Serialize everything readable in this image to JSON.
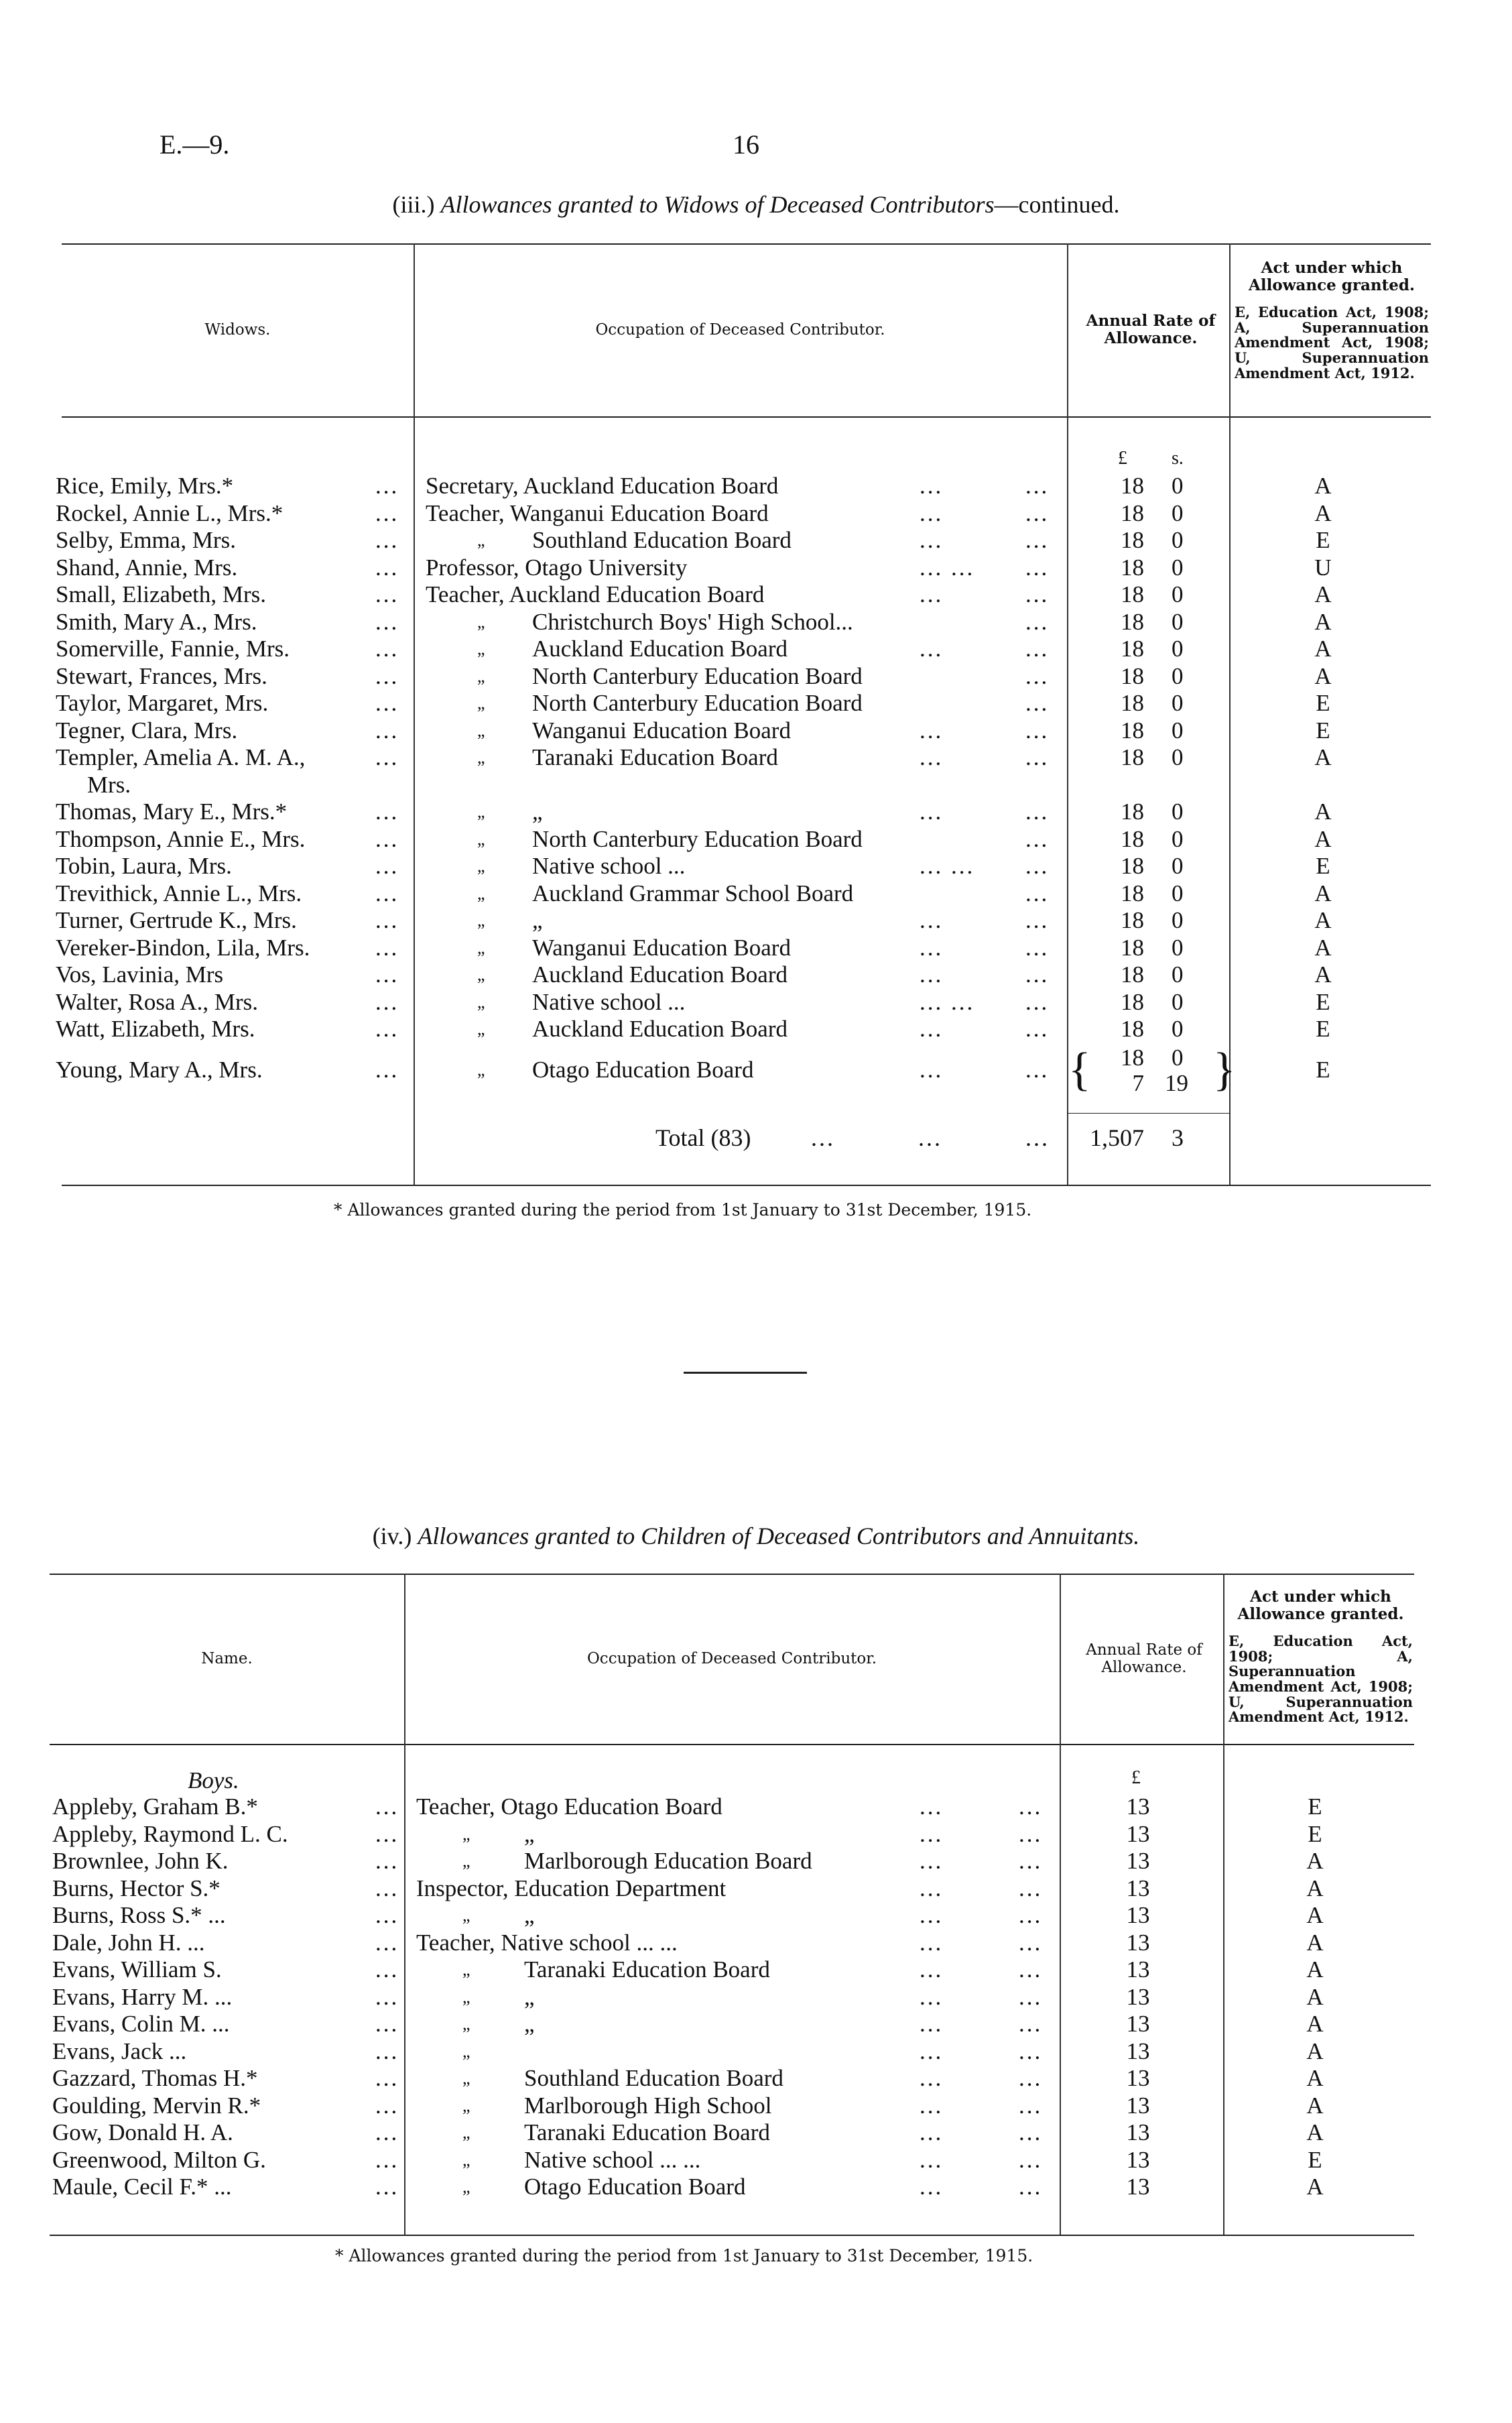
{
  "page": {
    "ref": "E.—9.",
    "number": "16"
  },
  "leader": "...",
  "ditto": "„",
  "widows": {
    "title_prefix": "(iii.)",
    "title_italic": "Allowances granted to Widows of Deceased Contributors",
    "title_suffix": "—continued.",
    "headers": {
      "name": "Widows.",
      "occupation": "Occupation of Deceased Contributor.",
      "rate": "Annual Rate of Allowance.",
      "act_title": "Act under which Allowance granted.",
      "act_note": "E, Education Act, 1908; A, Superannuation Amendment Act, 1908; U, Superannuation Amendment Act, 1912."
    },
    "units": {
      "pounds": "£",
      "shillings": "s."
    },
    "rows": [
      {
        "name": "Rice, Emily, Mrs.*",
        "ditto": false,
        "occ": "Secretary, Auckland Education Board",
        "mid": "...",
        "l": "18",
        "s": "0",
        "act": "A"
      },
      {
        "name": "Rockel, Annie L., Mrs.*",
        "ditto": false,
        "occ": "Teacher, Wanganui Education Board",
        "mid": "...",
        "l": "18",
        "s": "0",
        "act": "A"
      },
      {
        "name": "Selby, Emma, Mrs.",
        "ditto": true,
        "occ": "Southland Education Board",
        "mid": "...",
        "l": "18",
        "s": "0",
        "act": "E"
      },
      {
        "name": "Shand, Annie, Mrs.",
        "ditto": false,
        "occ": "Professor, Otago University",
        "mid": "...      ...",
        "l": "18",
        "s": "0",
        "act": "U"
      },
      {
        "name": "Small, Elizabeth, Mrs.",
        "ditto": false,
        "occ": "Teacher, Auckland Education Board",
        "mid": "...",
        "l": "18",
        "s": "0",
        "act": "A"
      },
      {
        "name": "Smith, Mary A., Mrs.",
        "ditto": true,
        "occ": "Christchurch Boys' High School...",
        "mid": "",
        "l": "18",
        "s": "0",
        "act": "A"
      },
      {
        "name": "Somerville, Fannie, Mrs.",
        "ditto": true,
        "occ": "Auckland Education Board",
        "mid": "...",
        "l": "18",
        "s": "0",
        "act": "A"
      },
      {
        "name": "Stewart, Frances, Mrs.",
        "ditto": true,
        "occ": "North Canterbury Education Board",
        "mid": "",
        "l": "18",
        "s": "0",
        "act": "A"
      },
      {
        "name": "Taylor, Margaret, Mrs.",
        "ditto": true,
        "occ": "North Canterbury Education Board",
        "mid": "",
        "l": "18",
        "s": "0",
        "act": "E"
      },
      {
        "name": "Tegner, Clara, Mrs.",
        "ditto": true,
        "occ": "Wanganui Education Board",
        "mid": "...",
        "l": "18",
        "s": "0",
        "act": "E"
      },
      {
        "name": "Templer, Amelia A. M. A.,",
        "name2": "Mrs.",
        "ditto": true,
        "occ": "Taranaki Education Board",
        "mid": "...",
        "l": "18",
        "s": "0",
        "act": "A"
      },
      {
        "name": "Thomas, Mary E., Mrs.*",
        "ditto": true,
        "occ": "„",
        "mid": "...",
        "l": "18",
        "s": "0",
        "act": "A"
      },
      {
        "name": "Thompson, Annie E., Mrs.",
        "ditto": true,
        "occ": "North Canterbury Education Board",
        "mid": "",
        "l": "18",
        "s": "0",
        "act": "A"
      },
      {
        "name": "Tobin, Laura, Mrs.",
        "ditto": true,
        "occ": "Native school ...",
        "mid": "...      ...",
        "l": "18",
        "s": "0",
        "act": "E"
      },
      {
        "name": "Trevithick, Annie L., Mrs.",
        "ditto": true,
        "occ": "Auckland Grammar School Board",
        "mid": "",
        "l": "18",
        "s": "0",
        "act": "A"
      },
      {
        "name": "Turner, Gertrude K., Mrs.",
        "ditto": true,
        "occ": "„",
        "mid": "...",
        "l": "18",
        "s": "0",
        "act": "A"
      },
      {
        "name": "Vereker-Bindon, Lila, Mrs.",
        "ditto": true,
        "occ": "Wanganui Education Board",
        "mid": "...",
        "l": "18",
        "s": "0",
        "act": "A"
      },
      {
        "name": "Vos, Lavinia, Mrs",
        "ditto": true,
        "occ": "Auckland Education Board",
        "mid": "...",
        "l": "18",
        "s": "0",
        "act": "A"
      },
      {
        "name": "Walter, Rosa A., Mrs.",
        "ditto": true,
        "occ": "Native school ...",
        "mid": "...      ...",
        "l": "18",
        "s": "0",
        "act": "E"
      },
      {
        "name": "Watt, Elizabeth, Mrs.",
        "ditto": true,
        "occ": "Auckland Education Board",
        "mid": "...",
        "l": "18",
        "s": "0",
        "act": "E"
      },
      {
        "name": "Young, Mary A., Mrs.",
        "ditto": true,
        "occ": "Otago Education Board",
        "mid": "...",
        "l": "18",
        "s": "0",
        "l2": "7",
        "s2": "19",
        "act": "E"
      }
    ],
    "total": {
      "label": "Total (83)",
      "pounds": "1,507",
      "shillings": "3"
    },
    "footnote": "* Allowances granted during the period from 1st January to 31st December, 1915."
  },
  "children": {
    "title_prefix": "(iv.)",
    "title_italic": "Allowances granted to Children of Deceased Contributors and Annuitants.",
    "headers": {
      "name": "Name.",
      "occupation": "Occupation of Deceased Contributor.",
      "rate": "Annual Rate of Allowance.",
      "act_title": "Act under which Allowance granted.",
      "act_note": "E, Education Act, 1908; A, Superannuation Amendment Act, 1908; U, Superannuation Amendment Act, 1912."
    },
    "group": "Boys.",
    "units": {
      "pounds": "£"
    },
    "rows": [
      {
        "name": "Appleby, Graham B.*",
        "ditto": false,
        "occ": "Teacher, Otago Education Board",
        "l": "13",
        "act": "E"
      },
      {
        "name": "Appleby, Raymond L. C.",
        "ditto": true,
        "occ": "„",
        "l": "13",
        "act": "E"
      },
      {
        "name": "Brownlee, John K.",
        "ditto": true,
        "occ": "Marlborough Education Board",
        "l": "13",
        "act": "A"
      },
      {
        "name": "Burns, Hector S.*",
        "ditto": false,
        "occ": "Inspector, Education Department",
        "l": "13",
        "act": "A"
      },
      {
        "name": "Burns, Ross S.*  ...",
        "ditto": true,
        "occ": "„",
        "l": "13",
        "act": "A"
      },
      {
        "name": "Dale, John H.   ...",
        "ditto": false,
        "occ": "Teacher, Native school ...    ...",
        "l": "13",
        "act": "A"
      },
      {
        "name": "Evans, William S.",
        "ditto": true,
        "occ": "Taranaki Education Board",
        "l": "13",
        "act": "A"
      },
      {
        "name": "Evans, Harry M. ...",
        "ditto": true,
        "occ": "„",
        "l": "13",
        "act": "A"
      },
      {
        "name": "Evans, Colin M. ...",
        "ditto": true,
        "occ": "„",
        "l": "13",
        "act": "A"
      },
      {
        "name": "Evans, Jack     ...",
        "ditto": true,
        "occ": "",
        "l": "13",
        "act": "A"
      },
      {
        "name": "Gazzard, Thomas H.*",
        "ditto": true,
        "occ": "Southland Education Board",
        "l": "13",
        "act": "A"
      },
      {
        "name": "Goulding, Mervin R.*",
        "ditto": true,
        "occ": "Marlborough High School",
        "l": "13",
        "act": "A"
      },
      {
        "name": "Gow, Donald H. A.",
        "ditto": true,
        "occ": "Taranaki Education Board",
        "l": "13",
        "act": "A"
      },
      {
        "name": "Greenwood, Milton G.",
        "ditto": true,
        "occ": "Native school ...    ...",
        "l": "13",
        "act": "E"
      },
      {
        "name": "Maule, Cecil F.* ...",
        "ditto": true,
        "occ": "Otago Education Board",
        "l": "13",
        "act": "A"
      }
    ],
    "footnote": "* Allowances granted during the period from 1st January to 31st December, 1915."
  }
}
